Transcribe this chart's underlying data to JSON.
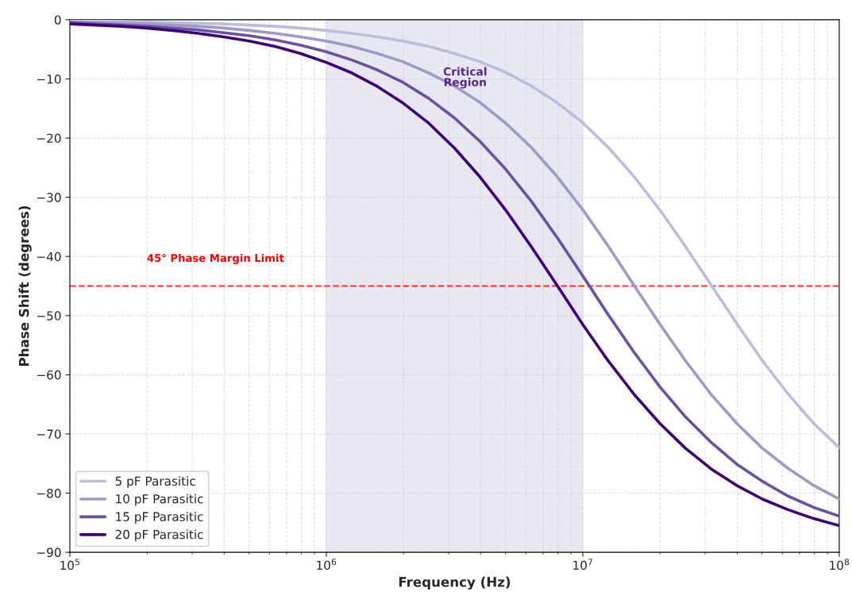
{
  "chart_data": {
    "type": "line",
    "xlabel": "Frequency (Hz)",
    "ylabel": "Phase Shift (degrees)",
    "log": "x",
    "x": [
      100000,
      125893,
      158489,
      199526,
      251189,
      316228,
      398107,
      501187,
      630957,
      794328,
      1000000,
      1258925,
      1584893,
      1995262,
      2511886,
      3162278,
      3981072,
      5011872,
      6309573,
      7943282,
      10000000,
      12589254,
      15848932,
      19952623,
      25118864,
      31622777,
      39810717,
      50118723,
      63095734,
      79432823,
      100000000
    ],
    "series": [
      {
        "name": "5 pF Parasitic",
        "color": "#bcbddc",
        "values": [
          -0.2,
          -0.2,
          -0.3,
          -0.4,
          -0.5,
          -0.6,
          -0.7,
          -0.9,
          -1.1,
          -1.4,
          -1.8,
          -2.3,
          -2.9,
          -3.6,
          -4.5,
          -5.7,
          -7.1,
          -8.9,
          -11.2,
          -14.0,
          -17.4,
          -21.6,
          -26.5,
          -32.1,
          -38.3,
          -44.8,
          -51.3,
          -57.6,
          -63.2,
          -68.2,
          -72.3
        ]
      },
      {
        "name": "10 pF Parasitic",
        "color": "#9e9ac8",
        "values": [
          -0.4,
          -0.5,
          -0.6,
          -0.7,
          -0.9,
          -1.1,
          -1.4,
          -1.8,
          -2.3,
          -2.9,
          -3.6,
          -4.5,
          -5.7,
          -7.1,
          -9.0,
          -11.2,
          -14.0,
          -17.5,
          -21.6,
          -26.5,
          -32.1,
          -38.3,
          -44.9,
          -51.4,
          -57.6,
          -63.3,
          -68.2,
          -72.4,
          -75.8,
          -78.7,
          -81.0
        ]
      },
      {
        "name": "15 pF Parasitic",
        "color": "#6a51a3",
        "values": [
          -0.5,
          -0.7,
          -0.9,
          -1.1,
          -1.4,
          -1.7,
          -2.2,
          -2.7,
          -3.4,
          -4.3,
          -5.4,
          -6.8,
          -8.5,
          -10.6,
          -13.3,
          -16.6,
          -20.6,
          -25.3,
          -30.7,
          -36.8,
          -43.3,
          -49.9,
          -56.2,
          -62.0,
          -67.1,
          -71.4,
          -75.1,
          -78.0,
          -80.5,
          -82.4,
          -83.9
        ]
      },
      {
        "name": "20 pF Parasitic",
        "color": "#3f007d",
        "values": [
          -0.7,
          -0.9,
          -1.1,
          -1.4,
          -1.8,
          -2.3,
          -2.9,
          -3.6,
          -4.5,
          -5.7,
          -7.2,
          -9.0,
          -11.3,
          -14.1,
          -17.5,
          -21.7,
          -26.6,
          -32.2,
          -38.4,
          -44.9,
          -51.5,
          -57.7,
          -63.3,
          -68.2,
          -72.4,
          -75.9,
          -78.7,
          -81.0,
          -82.8,
          -84.3,
          -85.5
        ]
      }
    ],
    "xlim": [
      100000,
      100000000
    ],
    "xticks": [
      {
        "value": 100000,
        "label": "10$^{5}$"
      },
      {
        "value": 1000000,
        "label": "10$^{6}$"
      },
      {
        "value": 10000000,
        "label": "10$^{7}$"
      },
      {
        "value": 100000000,
        "label": "10$^{8}$"
      }
    ],
    "ylim": [
      -90,
      0
    ],
    "yticks": [
      -90,
      -80,
      -70,
      -60,
      -50,
      -40,
      -30,
      -20,
      -10,
      0
    ],
    "ref_lines": [
      {
        "axis": "y",
        "value": -45,
        "label": "45° Phase Margin Limit",
        "color": "#ff0000",
        "line_style": "dashed"
      }
    ],
    "bands": [
      {
        "axis": "x",
        "from": 1000000,
        "to": 10000000,
        "label": "Critical\nRegion",
        "color": "#dadaeb"
      }
    ],
    "grid": true,
    "legend": "bottom left",
    "line_style": "solid",
    "marker": "none"
  }
}
